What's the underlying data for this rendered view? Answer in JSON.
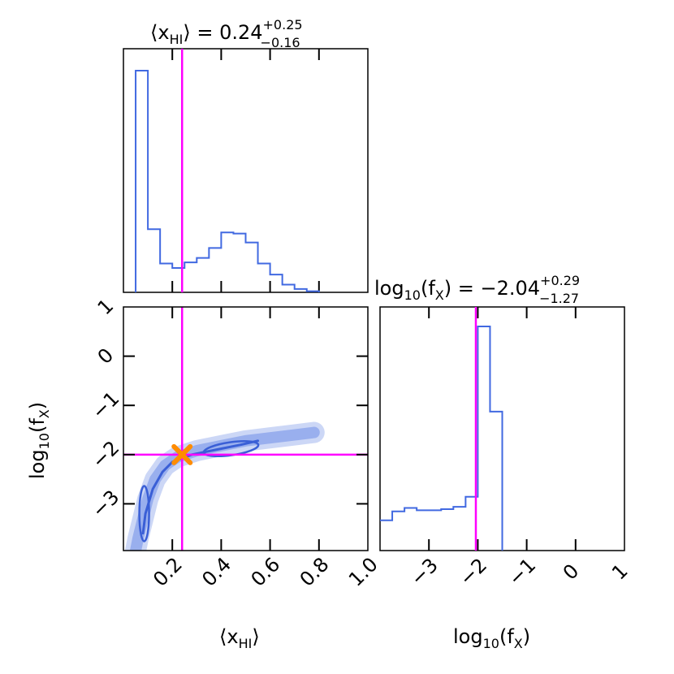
{
  "chart_data": [
    {
      "type": "histogram",
      "panel": "top-left",
      "title": {
        "param": "⟨x",
        "param_sub": "HI",
        "param_close": "⟩",
        "equals": " = ",
        "value": "0.24",
        "plus": "+0.25",
        "minus": "−0.16"
      },
      "xlim": [
        0.0,
        1.0
      ],
      "bin_edges": [
        0.05,
        0.1,
        0.15,
        0.2,
        0.25,
        0.3,
        0.35,
        0.4,
        0.45,
        0.5,
        0.55,
        0.6,
        0.65,
        0.7,
        0.75,
        0.8
      ],
      "counts": [
        1.0,
        0.285,
        0.13,
        0.11,
        0.135,
        0.155,
        0.2,
        0.27,
        0.265,
        0.225,
        0.13,
        0.08,
        0.035,
        0.015,
        0.005
      ],
      "truth_line_x": 0.24,
      "color": "#4169e1",
      "truth_color": "#ff00ff"
    },
    {
      "type": "contour",
      "panel": "bottom-left",
      "xlabel": {
        "text": "⟨x",
        "sub": "HI",
        "close": "⟩"
      },
      "ylabel": {
        "text": "log",
        "sub": "10",
        "mid": "(f",
        "sub2": "X",
        "close": ")"
      },
      "xlim": [
        0.0,
        1.0
      ],
      "ylim": [
        -3.95,
        1.0
      ],
      "xticks": [
        0.2,
        0.4,
        0.6,
        0.8,
        1.0
      ],
      "xticklabels": [
        "0.2",
        "0.4",
        "0.6",
        "0.8",
        "1.0"
      ],
      "yticks": [
        1,
        0,
        -1,
        -2,
        -3
      ],
      "yticklabels": [
        "1",
        "0",
        "−1",
        "−2",
        "−3"
      ],
      "ridge_outer": [
        [
          0.05,
          -3.95
        ],
        [
          0.06,
          -3.7
        ],
        [
          0.08,
          -3.3
        ],
        [
          0.1,
          -2.9
        ],
        [
          0.13,
          -2.5
        ],
        [
          0.17,
          -2.22
        ],
        [
          0.22,
          -2.05
        ],
        [
          0.3,
          -1.92
        ],
        [
          0.4,
          -1.82
        ],
        [
          0.5,
          -1.72
        ],
        [
          0.6,
          -1.66
        ],
        [
          0.7,
          -1.6
        ],
        [
          0.78,
          -1.55
        ]
      ],
      "ridge_inner": [
        [
          0.08,
          -3.6
        ],
        [
          0.09,
          -3.2
        ],
        [
          0.12,
          -2.7
        ],
        [
          0.16,
          -2.35
        ],
        [
          0.2,
          -2.15
        ],
        [
          0.28,
          -2.0
        ],
        [
          0.38,
          -1.9
        ],
        [
          0.48,
          -1.8
        ],
        [
          0.55,
          -1.72
        ]
      ],
      "truth_point": [
        0.24,
        -2.0
      ],
      "truth_lines": {
        "x": 0.24,
        "y": -2.0
      },
      "color": "#4169e1",
      "truth_color": "#ff00ff",
      "marker_color": "#ff8c00"
    },
    {
      "type": "histogram",
      "panel": "bottom-right",
      "title": {
        "param": "log",
        "param_sub": "10",
        "mid": "(f",
        "sub2": "X",
        "close": ")",
        "equals": " = ",
        "value": "−2.04",
        "plus": "+0.29",
        "minus": "−1.27"
      },
      "xlabel": {
        "text": "log",
        "sub": "10",
        "mid": "(f",
        "sub2": "X",
        "close": ")"
      },
      "xlim": [
        -4.0,
        1.0
      ],
      "xticks": [
        -3,
        -2,
        -1,
        0,
        1
      ],
      "xticklabels": [
        "−3",
        "−2",
        "−1",
        "0",
        "1"
      ],
      "bin_edges": [
        -4.0,
        -3.75,
        -3.5,
        -3.25,
        -3.0,
        -2.75,
        -2.5,
        -2.25,
        -2.0,
        -1.75,
        -1.5
      ],
      "counts": [
        0.135,
        0.175,
        0.19,
        0.18,
        0.18,
        0.185,
        0.195,
        0.24,
        1.0,
        0.62
      ],
      "truth_line_x": -2.04,
      "color": "#4169e1",
      "truth_color": "#ff00ff"
    }
  ]
}
